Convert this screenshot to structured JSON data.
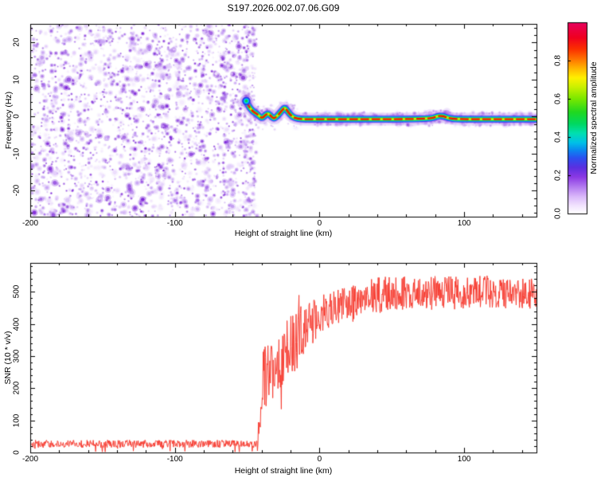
{
  "title": "S197.2026.002.07.06.G09",
  "chart_data": [
    {
      "type": "heatmap",
      "name": "radio-occultation-spectrogram",
      "xlabel": "Height of straight line (km)",
      "ylabel": "Frequency (Hz)",
      "xlim": [
        -200,
        150
      ],
      "ylim": [
        -27,
        25
      ],
      "xticks": [
        -200,
        -100,
        0,
        100
      ],
      "x_minor_step": 20,
      "yticks": [
        20,
        10,
        0,
        -10,
        -20
      ],
      "y_minor_step": 2,
      "noise_region": {
        "x_start": -200,
        "x_end": -48
      },
      "signal_track": {
        "points_km_hz": [
          [
            -51,
            4.2
          ],
          [
            -49.5,
            3.2
          ],
          [
            -47.5,
            2.0
          ],
          [
            -45.5,
            1.2
          ],
          [
            -43.5,
            0.8
          ],
          [
            -41,
            -0.1
          ],
          [
            -39.5,
            -0.4
          ],
          [
            -37.5,
            0.4
          ],
          [
            -35.5,
            0.9
          ],
          [
            -33.5,
            0.1
          ],
          [
            -31.5,
            -0.6
          ],
          [
            -29.5,
            0.1
          ],
          [
            -27.5,
            0.9
          ],
          [
            -25.5,
            1.9
          ],
          [
            -24,
            2.4
          ],
          [
            -22.5,
            1.7
          ],
          [
            -20.5,
            0.6
          ],
          [
            -18,
            -0.2
          ],
          [
            -15,
            -0.6
          ],
          [
            -10,
            -0.7
          ],
          [
            0,
            -0.7
          ],
          [
            30,
            -0.7
          ],
          [
            60,
            -0.7
          ],
          [
            78,
            -0.5
          ],
          [
            81,
            0.1
          ],
          [
            85,
            0.2
          ],
          [
            89,
            -0.4
          ],
          [
            95,
            -0.7
          ],
          [
            120,
            -0.7
          ],
          [
            150,
            -0.7
          ]
        ]
      },
      "colorbar": {
        "label": "Normalized spectral amplitude",
        "ticks": [
          "0.0",
          "0.2",
          "0.4",
          "0.6",
          "0.8"
        ],
        "tick_values": [
          0.0,
          0.2,
          0.4,
          0.6,
          0.8
        ],
        "range": [
          0,
          1
        ],
        "gradient_stops": [
          [
            0.0,
            "#ffffff"
          ],
          [
            0.04,
            "#f2e4fe"
          ],
          [
            0.09,
            "#d9b6fa"
          ],
          [
            0.14,
            "#b37af0"
          ],
          [
            0.19,
            "#8c3ae4"
          ],
          [
            0.24,
            "#5b2fe0"
          ],
          [
            0.29,
            "#2b50f0"
          ],
          [
            0.33,
            "#0b86f0"
          ],
          [
            0.37,
            "#00c0e8"
          ],
          [
            0.42,
            "#00e0b0"
          ],
          [
            0.47,
            "#00d860"
          ],
          [
            0.53,
            "#20d820"
          ],
          [
            0.6,
            "#7ae800"
          ],
          [
            0.66,
            "#c8f000"
          ],
          [
            0.71,
            "#fff000"
          ],
          [
            0.76,
            "#ffb400"
          ],
          [
            0.81,
            "#ff7000"
          ],
          [
            0.86,
            "#fb3000"
          ],
          [
            0.92,
            "#f00020"
          ],
          [
            1.0,
            "#e6005f"
          ]
        ]
      }
    },
    {
      "type": "line",
      "name": "snr-profile",
      "xlabel": "Height of straight line (km)",
      "ylabel": "SNR (10 * v/v)",
      "xlim": [
        -200,
        150
      ],
      "ylim": [
        0,
        590
      ],
      "xticks": [
        -200,
        -100,
        0,
        100
      ],
      "x_minor_step": 20,
      "yticks": [
        0,
        100,
        200,
        300,
        400,
        500
      ],
      "y_minor_step": 20,
      "line_color": "#f73e33",
      "series_envelope": [
        {
          "from": -200,
          "to": -43,
          "level": [
            27,
            27
          ],
          "noise": 12
        },
        {
          "from": -43,
          "to": -39,
          "level": [
            32,
            200
          ],
          "noise": 40
        },
        {
          "from": -39,
          "to": -30,
          "level": [
            230,
            280
          ],
          "noise": 100
        },
        {
          "from": -30,
          "to": -22,
          "level": [
            280,
            320
          ],
          "noise": 95
        },
        {
          "from": -22,
          "to": -12,
          "level": [
            320,
            370
          ],
          "noise": 95
        },
        {
          "from": -12,
          "to": 0,
          "level": [
            370,
            430
          ],
          "noise": 70
        },
        {
          "from": 0,
          "to": 45,
          "level": [
            430,
            495
          ],
          "noise": 58
        },
        {
          "from": 45,
          "to": 150,
          "level": [
            495,
            500
          ],
          "noise": 52
        }
      ]
    }
  ]
}
